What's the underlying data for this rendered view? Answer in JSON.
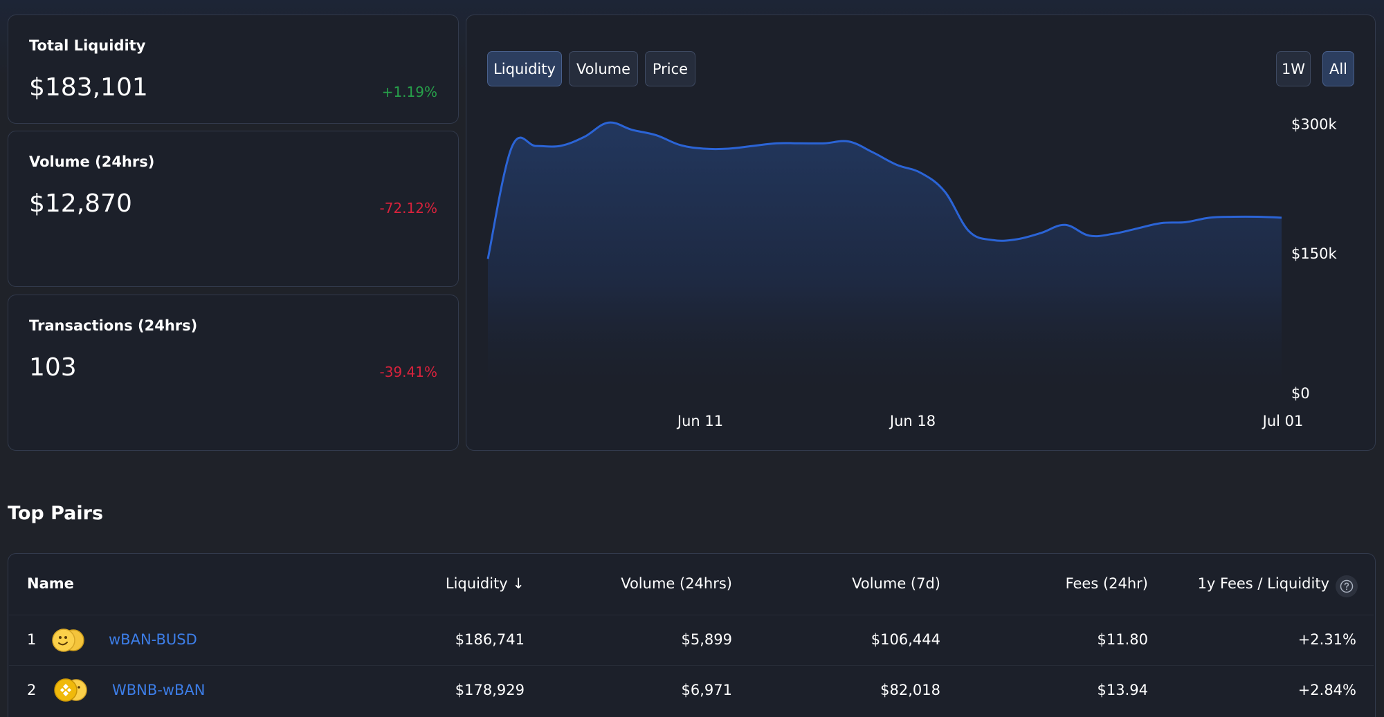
{
  "stats": [
    {
      "title": "Total Liquidity",
      "value": "$183,101",
      "change": "+1.19%",
      "direction": "up"
    },
    {
      "title": "Volume (24hrs)",
      "value": "$12,870",
      "change": "-72.12%",
      "direction": "down"
    },
    {
      "title": "Transactions (24hrs)",
      "value": "103",
      "change": "-39.41%",
      "direction": "down"
    }
  ],
  "chart_tabs": [
    "Liquidity",
    "Volume",
    "Price"
  ],
  "active_tab": "Liquidity",
  "range_tabs": [
    "1W",
    "All"
  ],
  "active_range": "All",
  "chart_data": {
    "type": "area",
    "x_axis_labels": [
      "Jun 11",
      "Jun 18",
      "Jul 01"
    ],
    "y_axis_labels": [
      "$300k",
      "$150k",
      "$0"
    ],
    "ylim": [
      0,
      300000
    ],
    "y_axis_position": "right",
    "grid": false,
    "series_color": "#2b64d6",
    "values": [
      150000,
      275000,
      276000,
      276000,
      286000,
      302000,
      294000,
      288000,
      277000,
      273000,
      273000,
      276000,
      279000,
      279000,
      279000,
      281000,
      269000,
      255000,
      246000,
      225000,
      181000,
      171000,
      172000,
      179000,
      188000,
      176000,
      178000,
      184000,
      190000,
      191000,
      196000,
      197000,
      197000,
      196000
    ]
  },
  "top_pairs": {
    "title": "Top Pairs",
    "columns": [
      "Name",
      "Liquidity ↓",
      "Volume (24hrs)",
      "Volume (7d)",
      "Fees (24hr)",
      "1y Fees / Liquidity"
    ],
    "rows": [
      {
        "rank": "1",
        "name": "wBAN-BUSD",
        "liquidity": "$186,741",
        "volume_24h": "$5,899",
        "volume_7d": "$106,444",
        "fees_24h": "$11.80",
        "apr": "+2.31%"
      },
      {
        "rank": "2",
        "name": "WBNB-wBAN",
        "liquidity": "$178,929",
        "volume_24h": "$6,971",
        "volume_7d": "$82,018",
        "fees_24h": "$13.94",
        "apr": "+2.84%"
      }
    ]
  },
  "colors": {
    "positive": "#27a04a",
    "negative": "#d8223c",
    "link": "#3d7ee8",
    "accent": "#2b64d6"
  }
}
